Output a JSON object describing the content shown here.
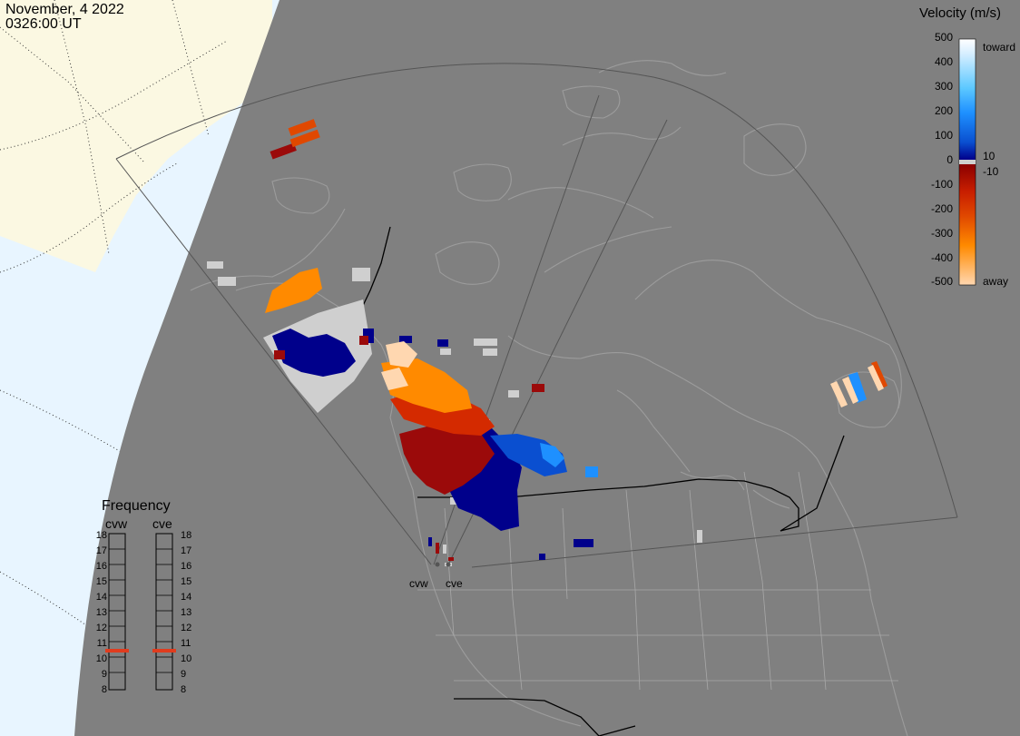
{
  "header": {
    "date": "November, 4 2022",
    "time": "0326:00 UT"
  },
  "colorbar": {
    "title": "Velocity (m/s)",
    "ticks": [
      "500",
      "400",
      "300",
      "200",
      "100",
      "0",
      "-100",
      "-200",
      "-300",
      "-400",
      "-500"
    ],
    "inner_ticks": [
      "10",
      "-10"
    ],
    "toward_label": "toward",
    "away_label": "away",
    "gradient": [
      "#ffffff",
      "#d6eeff",
      "#5cc8ff",
      "#1e90ff",
      "#0a4fd0",
      "#00008b",
      "#8b0000",
      "#c81e00",
      "#e04800",
      "#ff8a00",
      "#ffd7b0"
    ]
  },
  "frequency_panel": {
    "title": "Frequency",
    "radars": [
      {
        "name": "cvw",
        "frequency_mhz": 10.5
      },
      {
        "name": "cve",
        "frequency_mhz": 10.5
      }
    ],
    "scale": [
      "18",
      "17",
      "16",
      "15",
      "14",
      "13",
      "12",
      "11",
      "10",
      "9",
      "8"
    ],
    "marker_color": "#e03c1e"
  },
  "map": {
    "sites": [
      {
        "name": "cvw"
      },
      {
        "name": "cve"
      }
    ],
    "colors": {
      "earth": "#808080",
      "space": "#e8f5ff",
      "daylight": "#fbf8e2",
      "coastlines": "#9c9c9c",
      "borders": "#000000",
      "fov_outline": "#555555"
    }
  }
}
